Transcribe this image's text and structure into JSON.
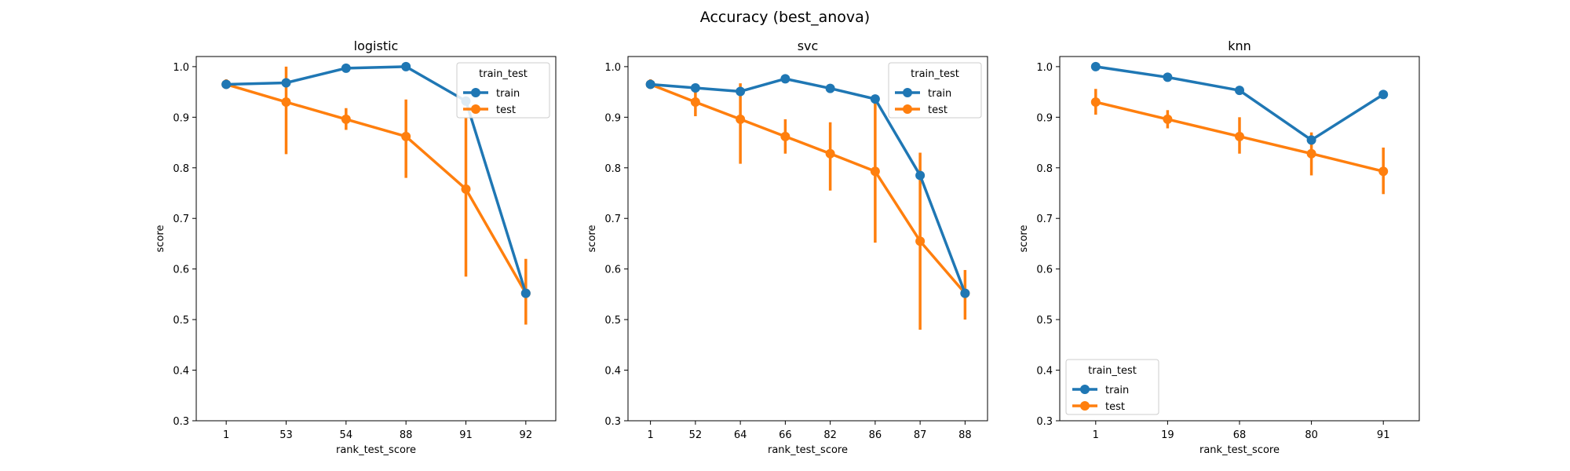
{
  "figure": {
    "suptitle": "Accuracy (best_anova)"
  },
  "chart_data": [
    {
      "type": "line",
      "title": "logistic",
      "xlabel": "rank_test_score",
      "ylabel": "score",
      "ylim": [
        0.3,
        1.02
      ],
      "yticks": [
        0.3,
        0.4,
        0.5,
        0.6,
        0.7,
        0.8,
        0.9,
        1.0
      ],
      "ytick_labels": [
        "0.3",
        "0.4",
        "0.5",
        "0.6",
        "0.7",
        "0.8",
        "0.9",
        "1.0"
      ],
      "categories": [
        "1",
        "53",
        "54",
        "88",
        "91",
        "92"
      ],
      "legend": {
        "title": "train_test",
        "placement": "upper right"
      },
      "series": [
        {
          "name": "train",
          "color": "#1f77b4",
          "values": [
            0.965,
            0.968,
            0.997,
            1.0,
            0.932,
            0.552
          ],
          "err_low": [
            null,
            null,
            null,
            null,
            null,
            null
          ],
          "err_high": [
            null,
            null,
            null,
            null,
            null,
            null
          ]
        },
        {
          "name": "test",
          "color": "#ff7f0e",
          "values": [
            0.965,
            0.93,
            0.896,
            0.862,
            0.758,
            0.552
          ],
          "err_low": [
            0.958,
            0.827,
            0.875,
            0.78,
            0.585,
            0.49
          ],
          "err_high": [
            0.975,
            1.0,
            0.918,
            0.935,
            0.9,
            0.62
          ]
        }
      ]
    },
    {
      "type": "line",
      "title": "svc",
      "xlabel": "rank_test_score",
      "ylabel": "score",
      "ylim": [
        0.3,
        1.02
      ],
      "yticks": [
        0.3,
        0.4,
        0.5,
        0.6,
        0.7,
        0.8,
        0.9,
        1.0
      ],
      "ytick_labels": [
        "0.3",
        "0.4",
        "0.5",
        "0.6",
        "0.7",
        "0.8",
        "0.9",
        "1.0"
      ],
      "categories": [
        "1",
        "52",
        "64",
        "66",
        "82",
        "86",
        "87",
        "88"
      ],
      "legend": {
        "title": "train_test",
        "placement": "upper right"
      },
      "series": [
        {
          "name": "train",
          "color": "#1f77b4",
          "values": [
            0.965,
            0.958,
            0.951,
            0.976,
            0.957,
            0.936,
            0.785,
            0.552
          ],
          "err_low": [
            null,
            null,
            null,
            null,
            null,
            null,
            null,
            null
          ],
          "err_high": [
            null,
            null,
            null,
            null,
            null,
            null,
            null,
            null
          ]
        },
        {
          "name": "test",
          "color": "#ff7f0e",
          "values": [
            0.965,
            0.93,
            0.896,
            0.862,
            0.828,
            0.793,
            0.655,
            0.552
          ],
          "err_low": [
            0.958,
            0.902,
            0.808,
            0.828,
            0.755,
            0.652,
            0.48,
            0.5
          ],
          "err_high": [
            0.975,
            0.958,
            0.967,
            0.896,
            0.89,
            0.935,
            0.83,
            0.598
          ]
        }
      ]
    },
    {
      "type": "line",
      "title": "knn",
      "xlabel": "rank_test_score",
      "ylabel": "score",
      "ylim": [
        0.3,
        1.02
      ],
      "yticks": [
        0.3,
        0.4,
        0.5,
        0.6,
        0.7,
        0.8,
        0.9,
        1.0
      ],
      "ytick_labels": [
        "0.3",
        "0.4",
        "0.5",
        "0.6",
        "0.7",
        "0.8",
        "0.9",
        "1.0"
      ],
      "categories": [
        "1",
        "19",
        "68",
        "80",
        "91"
      ],
      "legend": {
        "title": "train_test",
        "placement": "lower left"
      },
      "series": [
        {
          "name": "train",
          "color": "#1f77b4",
          "values": [
            1.0,
            0.979,
            0.953,
            0.855,
            0.945
          ],
          "err_low": [
            null,
            null,
            null,
            null,
            null
          ],
          "err_high": [
            null,
            null,
            null,
            null,
            null
          ]
        },
        {
          "name": "test",
          "color": "#ff7f0e",
          "values": [
            0.93,
            0.896,
            0.862,
            0.828,
            0.793
          ],
          "err_low": [
            0.905,
            0.878,
            0.828,
            0.785,
            0.748
          ],
          "err_high": [
            0.956,
            0.914,
            0.9,
            0.87,
            0.84
          ]
        }
      ]
    }
  ]
}
